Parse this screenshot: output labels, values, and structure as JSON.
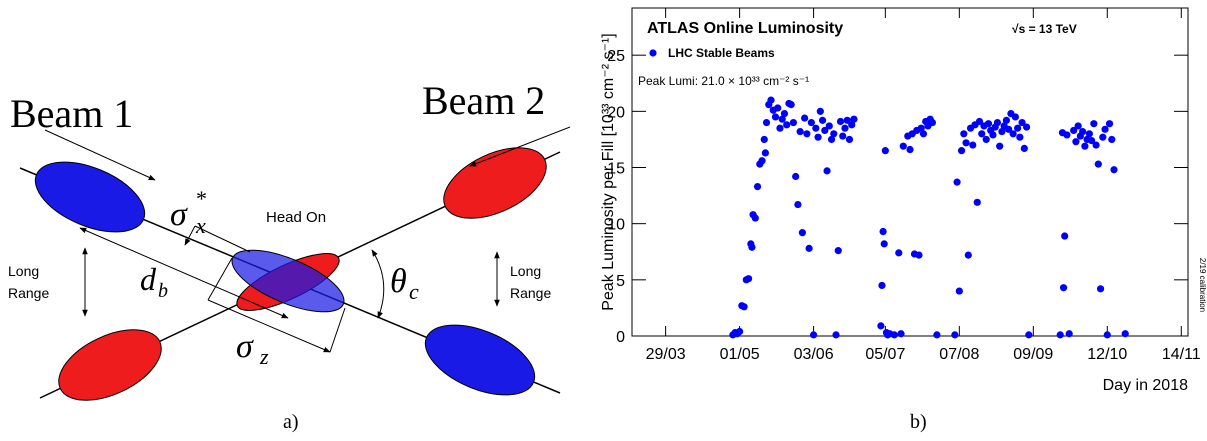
{
  "diagram": {
    "beam1_label": "Beam 1",
    "beam2_label": "Beam 2",
    "head_on_label": "Head On",
    "long_range_left": [
      "Long",
      "Range"
    ],
    "long_range_right": [
      "Long",
      "Range"
    ],
    "sigma_x": {
      "symbol": "σ",
      "sup": "*",
      "sub": "x"
    },
    "d_b": {
      "symbol": "d",
      "sub": "b"
    },
    "sigma_z": {
      "symbol": "σ",
      "sub": "z"
    },
    "theta_c": {
      "symbol": "θ",
      "sub": "c"
    },
    "panel_label": "a)"
  },
  "chart_data": {
    "type": "scatter",
    "title": "ATLAS Online Luminosity",
    "subtitle": "√s = 13 TeV",
    "annotation": "Peak Lumi: 21.0 × 10³³ cm⁻² s⁻¹",
    "note": "2/19 calibration",
    "xlabel": "Day in 2018",
    "ylabel": "Peak Luminosity per Fill [10³³ cm⁻² s⁻¹]",
    "panel_label": "b)",
    "x": [
      118,
      119,
      120,
      121,
      122,
      123,
      124,
      125,
      126,
      126.5,
      127,
      128,
      129,
      130,
      131,
      132,
      132.5,
      133,
      134,
      135,
      136,
      137,
      138,
      139,
      140,
      141,
      142,
      143,
      144,
      145,
      146,
      147,
      148,
      149,
      150,
      151,
      152,
      153,
      154,
      155,
      156,
      157,
      158,
      159,
      160,
      161,
      162,
      163,
      164,
      165,
      166,
      167,
      168,
      169,
      170,
      171,
      172,
      184,
      184.5,
      185,
      185.5,
      186,
      186.5,
      187,
      188,
      190,
      192,
      193,
      194,
      196,
      197,
      198,
      199,
      200,
      201,
      202,
      203,
      204,
      205,
      206,
      207,
      209,
      217,
      218,
      219,
      220,
      221,
      222,
      223,
      224,
      225,
      226,
      227,
      228,
      229,
      230,
      231,
      232,
      233,
      234,
      235,
      236,
      237,
      238,
      239,
      240,
      241,
      242,
      243,
      244,
      245,
      246,
      247,
      248,
      249,
      250,
      264,
      265,
      265.5,
      266,
      267,
      268,
      270,
      271,
      272,
      273,
      274,
      275,
      276,
      277,
      278,
      279,
      280,
      281,
      282,
      283,
      284,
      285,
      286,
      287,
      288,
      293
    ],
    "series": [
      {
        "name": "LHC Stable Beams",
        "color": "#0000ff",
        "values": [
          0.1,
          0.3,
          0.2,
          0.4,
          2.7,
          2.6,
          5.0,
          5.1,
          8.2,
          7.9,
          10.8,
          10.5,
          13.3,
          15.3,
          15.6,
          17.5,
          16.3,
          19.0,
          20.6,
          21.0,
          20.1,
          19.5,
          20.3,
          18.5,
          19.3,
          19.8,
          18.8,
          20.7,
          20.6,
          19.0,
          14.2,
          11.7,
          18.2,
          9.2,
          19.4,
          18.0,
          7.8,
          19.0,
          0.1,
          18.5,
          17.7,
          20.0,
          19.2,
          18.3,
          14.7,
          18.7,
          17.5,
          18.0,
          0.1,
          7.6,
          19.1,
          17.8,
          18.5,
          19.2,
          17.5,
          18.8,
          19.3,
          0.9,
          4.5,
          9.3,
          8.2,
          16.5,
          0.3,
          0.1,
          0.2,
          0.1,
          7.4,
          0.2,
          16.9,
          17.8,
          16.6,
          18.0,
          7.3,
          18.3,
          7.2,
          18.5,
          18.0,
          19.1,
          18.7,
          19.3,
          19.0,
          0.1,
          0.1,
          13.7,
          4.0,
          16.5,
          18.0,
          17.2,
          7.2,
          18.5,
          17.0,
          18.8,
          11.9,
          19.1,
          18.0,
          18.7,
          17.5,
          18.9,
          18.3,
          17.9,
          18.6,
          19.0,
          16.9,
          18.2,
          18.7,
          19.2,
          18.4,
          19.8,
          18.0,
          19.5,
          18.5,
          17.7,
          19.0,
          16.7,
          18.6,
          0.1,
          0.1,
          18.1,
          4.3,
          8.9,
          17.9,
          0.2,
          18.3,
          17.3,
          18.7,
          17.8,
          18.2,
          16.9,
          17.5,
          18.0,
          17.4,
          18.9,
          17.0,
          15.3,
          4.2,
          17.7,
          18.4,
          0.1,
          18.9,
          17.5,
          14.8,
          0.2
        ]
      }
    ],
    "xlim": [
      73,
      321
    ],
    "xticks": [
      {
        "value": 88,
        "label": "29/03"
      },
      {
        "value": 121,
        "label": "01/05"
      },
      {
        "value": 154,
        "label": "03/06"
      },
      {
        "value": 186,
        "label": "05/07"
      },
      {
        "value": 219,
        "label": "07/08"
      },
      {
        "value": 252,
        "label": "09/09"
      },
      {
        "value": 285,
        "label": "12/10"
      },
      {
        "value": 318,
        "label": "14/11"
      }
    ],
    "ylim": [
      0,
      29.2
    ],
    "yticks": [
      0,
      5,
      10,
      15,
      20,
      25
    ],
    "legend": "upper left"
  }
}
